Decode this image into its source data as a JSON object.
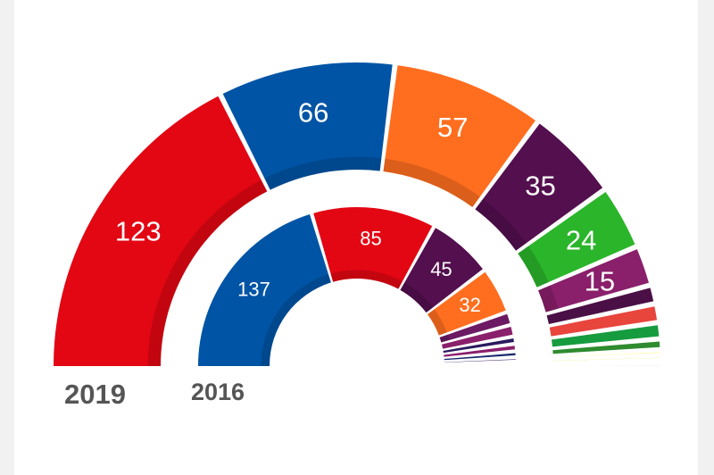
{
  "chart_data": {
    "type": "pie",
    "variant": "semicircle",
    "rings": [
      {
        "year": "2019",
        "values": [
          123,
          66,
          57,
          35,
          24,
          15,
          7,
          7,
          6,
          4,
          2,
          2,
          1,
          1
        ],
        "labels": [
          "123",
          "66",
          "57",
          "35",
          "24",
          "15",
          "",
          "",
          "",
          "",
          "",
          "",
          "",
          ""
        ],
        "colors": [
          "#e30613",
          "#0054a5",
          "#ff6e1f",
          "#530f4e",
          "#2ab52a",
          "#8a1f6b",
          "#4a0f45",
          "#e8453c",
          "#179b3f",
          "#2e8b2e",
          "#ffed00",
          "#c8d400",
          "#c4161c",
          "#f5a3b8"
        ]
      },
      {
        "year": "2016",
        "values": [
          137,
          85,
          45,
          32,
          9,
          8,
          5,
          5,
          4,
          3,
          2,
          1
        ],
        "labels": [
          "137",
          "85",
          "45",
          "32",
          "",
          "",
          "",
          "",
          "",
          "",
          "",
          ""
        ],
        "colors": [
          "#0054a5",
          "#e30613",
          "#530f4e",
          "#ff6e1f",
          "#6b1a63",
          "#8a1f6b",
          "#2a1a5e",
          "#8a1f6b",
          "#1a2a6e",
          "#4a2f75",
          "#b8d400",
          "#2ab52a"
        ]
      }
    ]
  }
}
